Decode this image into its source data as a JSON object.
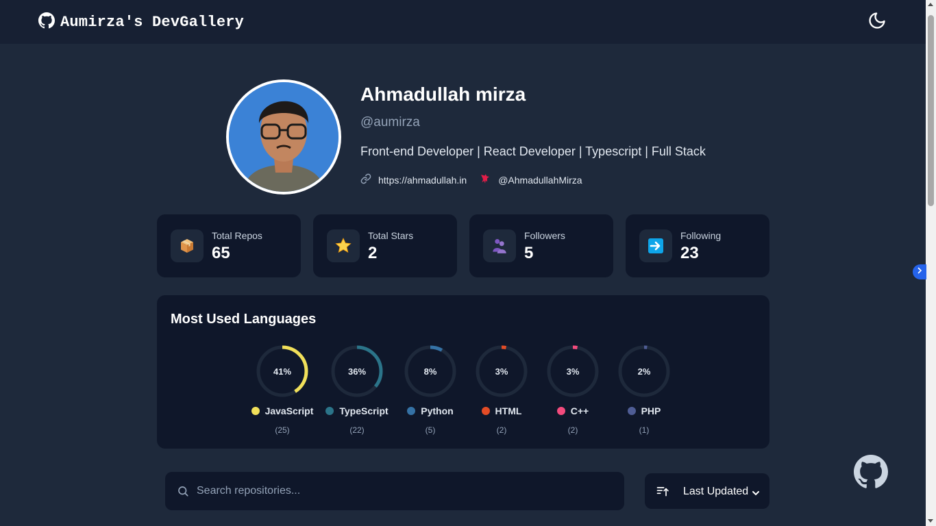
{
  "header": {
    "title": "Aumirza's DevGallery",
    "logo_icon": "github-icon",
    "theme_icon": "moon-icon"
  },
  "profile": {
    "name": "Ahmadullah mirza",
    "handle": "@aumirza",
    "bio": "Front-end Developer | React Developer | Typescript | Full Stack",
    "website": "https://ahmadullah.in",
    "twitter": "@AhmadullahMirza"
  },
  "stats": [
    {
      "label": "Total Repos",
      "value": "65",
      "icon": "package-icon"
    },
    {
      "label": "Total Stars",
      "value": "2",
      "icon": "star-icon"
    },
    {
      "label": "Followers",
      "value": "5",
      "icon": "people-icon"
    },
    {
      "label": "Following",
      "value": "23",
      "icon": "right-arrow-icon"
    }
  ],
  "languages": {
    "title": "Most Used Languages",
    "items": [
      {
        "name": "JavaScript",
        "percent": "41%",
        "fraction": 0.41,
        "count": "(25)",
        "color": "#f1e05a"
      },
      {
        "name": "TypeScript",
        "percent": "36%",
        "fraction": 0.36,
        "count": "(22)",
        "color": "#2b7489"
      },
      {
        "name": "Python",
        "percent": "8%",
        "fraction": 0.08,
        "count": "(5)",
        "color": "#3572a5"
      },
      {
        "name": "HTML",
        "percent": "3%",
        "fraction": 0.03,
        "count": "(2)",
        "color": "#e34c26"
      },
      {
        "name": "C++",
        "percent": "3%",
        "fraction": 0.03,
        "count": "(2)",
        "color": "#f34b7d"
      },
      {
        "name": "PHP",
        "percent": "2%",
        "fraction": 0.02,
        "count": "(1)",
        "color": "#4f5d95"
      }
    ]
  },
  "search": {
    "placeholder": "Search repositories...",
    "value": ""
  },
  "sort": {
    "label": "Last Updated"
  },
  "colors": {
    "background": "#1e293b",
    "card": "#0f172a",
    "header": "#172033",
    "accent": "#2563eb"
  }
}
